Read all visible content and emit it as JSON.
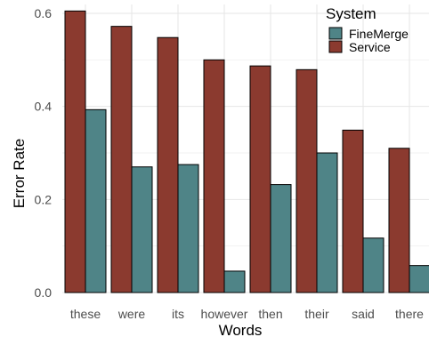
{
  "chart_data": {
    "type": "bar",
    "title": "",
    "xlabel": "Words",
    "ylabel": "Error Rate",
    "categories": [
      "these",
      "were",
      "its",
      "however",
      "then",
      "their",
      "said",
      "there"
    ],
    "series": [
      {
        "name": "Service",
        "color": "#8b3a2f",
        "values": [
          0.605,
          0.572,
          0.548,
          0.5,
          0.487,
          0.479,
          0.349,
          0.31
        ]
      },
      {
        "name": "FineMerge",
        "color": "#4f8487",
        "values": [
          0.393,
          0.27,
          0.275,
          0.046,
          0.232,
          0.3,
          0.117,
          0.058
        ]
      }
    ],
    "ylim": [
      0,
      0.6
    ],
    "y_ticks": [
      0.0,
      0.2,
      0.4,
      0.6
    ],
    "y_tick_labels": [
      "0.0",
      "0.2",
      "0.4",
      "0.6"
    ],
    "grid": true,
    "legend": {
      "title": "System",
      "position": "top-right",
      "entries": [
        {
          "label": "FineMerge",
          "color": "#4f8487"
        },
        {
          "label": "Service",
          "color": "#8b3a2f"
        }
      ]
    }
  }
}
